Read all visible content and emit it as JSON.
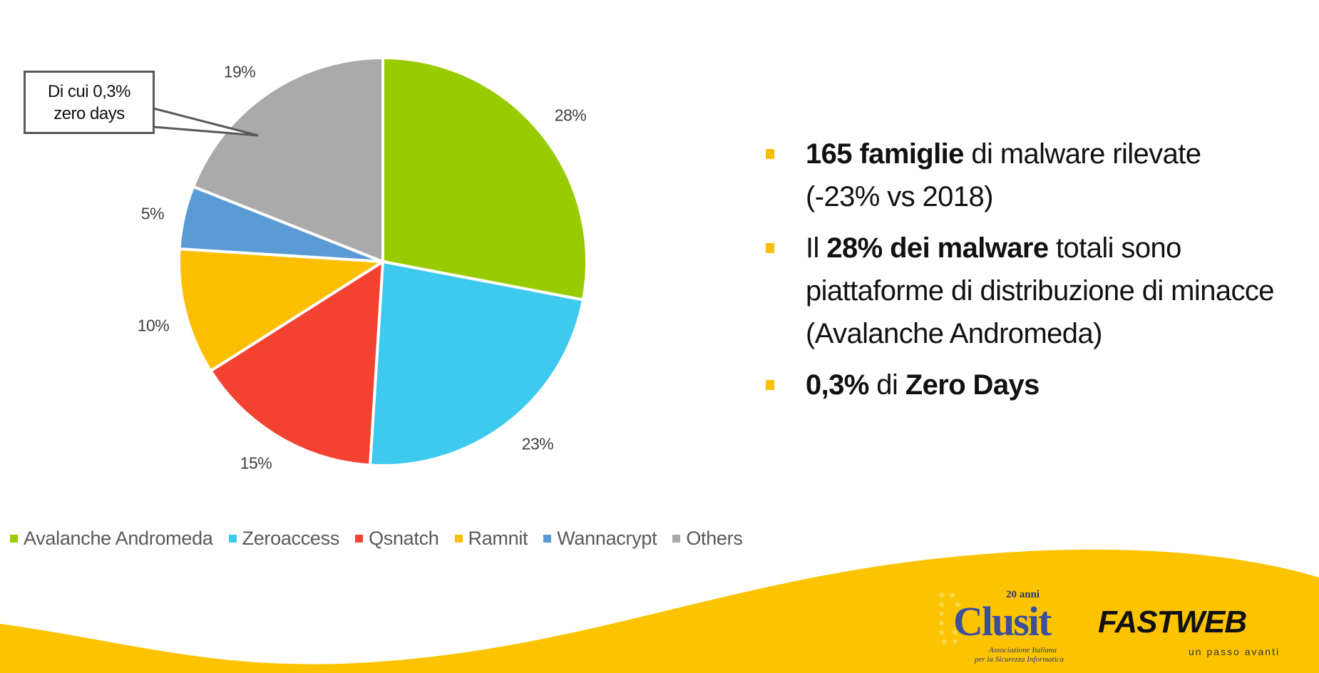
{
  "chart_data": {
    "type": "pie",
    "title": "",
    "categories": [
      "Avalanche Andromeda",
      "Zeroaccess",
      "Qsnatch",
      "Ramnit",
      "Wannacrypt",
      "Others"
    ],
    "values": [
      28,
      23,
      15,
      10,
      5,
      19
    ],
    "value_labels": [
      "28%",
      "23%",
      "15%",
      "10%",
      "5%",
      "19%"
    ],
    "colors": [
      "#99cc00",
      "#3ec9ee",
      "#f44232",
      "#fcbf00",
      "#5b9bd5",
      "#aaaaaa"
    ],
    "start_angle_deg": 90,
    "direction": "clockwise",
    "legend_position": "bottom",
    "annotations": [
      {
        "text": "Di cui 0,3% zero days",
        "points_to": "Others"
      }
    ]
  },
  "callout": {
    "line1": "Di cui 0,3%",
    "line2": "zero days"
  },
  "legend": [
    {
      "label": "Avalanche Andromeda",
      "color": "#99cc00"
    },
    {
      "label": "Zeroaccess",
      "color": "#3ec9ee"
    },
    {
      "label": "Qsnatch",
      "color": "#f44232"
    },
    {
      "label": "Ramnit",
      "color": "#fcbf00"
    },
    {
      "label": "Wannacrypt",
      "color": "#5b9bd5"
    },
    {
      "label": "Others",
      "color": "#aaaaaa"
    }
  ],
  "bullets": [
    {
      "bold1": "165 famiglie",
      "text1": " di malware rilevate",
      "line2": "(-23% vs 2018)"
    },
    {
      "text0": "Il ",
      "bold1": "28% dei malware",
      "text1": " totali sono",
      "line2": "piattaforme di distribuzione di minacce",
      "line3": "(Avalanche Andromeda)"
    },
    {
      "bold1": "0,3%",
      "text1": " di ",
      "bold2": "Zero Days"
    }
  ],
  "footer": {
    "clusit": {
      "word": "Clusit",
      "anni": "20 anni",
      "sub1": "Associazione Italiana",
      "sub2": "per la Sicurezza Informatica"
    },
    "fastweb": {
      "word": "FASTWEB",
      "tagline": "un passo avanti"
    },
    "accent": "#fcc400"
  }
}
